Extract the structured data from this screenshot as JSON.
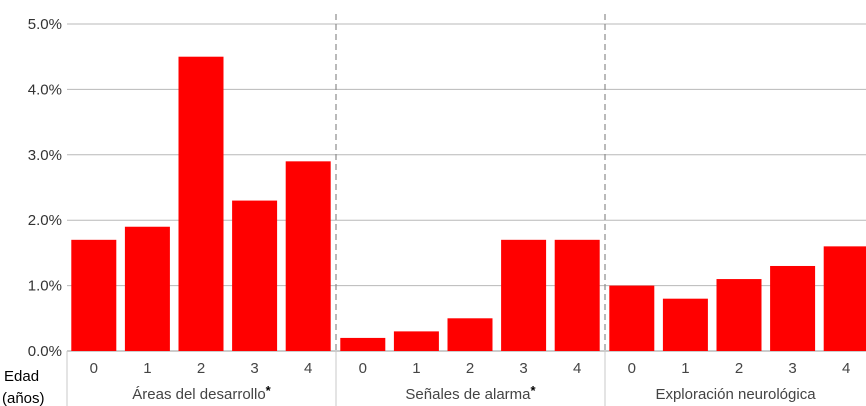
{
  "chart_data": {
    "type": "bar",
    "x_axis_title": [
      "Edad",
      "(años)"
    ],
    "ylim": [
      0,
      5.0
    ],
    "y_ticks": [
      "0.0%",
      "1.0%",
      "2.0%",
      "3.0%",
      "4.0%",
      "5.0%"
    ],
    "grid": true,
    "bar_color": "#ff0000",
    "groups": [
      {
        "label": "Áreas del desarrollo",
        "marker": "*",
        "categories": [
          "0",
          "1",
          "2",
          "3",
          "4"
        ],
        "values": [
          1.7,
          1.9,
          4.5,
          2.3,
          2.9
        ]
      },
      {
        "label": "Señales de alarma",
        "marker": "*",
        "categories": [
          "0",
          "1",
          "2",
          "3",
          "4"
        ],
        "values": [
          0.2,
          0.3,
          0.5,
          1.7,
          1.7
        ]
      },
      {
        "label": "Exploración neurológica",
        "marker": "",
        "categories": [
          "0",
          "1",
          "2",
          "3",
          "4"
        ],
        "values": [
          1.0,
          0.8,
          1.1,
          1.3,
          1.6
        ]
      }
    ]
  }
}
